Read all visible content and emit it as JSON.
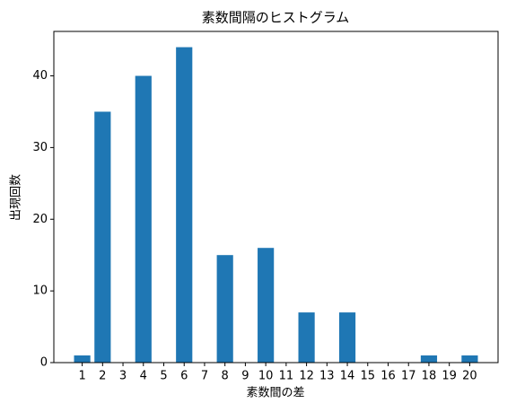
{
  "chart_data": {
    "type": "bar",
    "title": "素数間隔のヒストグラム",
    "x_label": "素数間の差",
    "y_label": "出現回数",
    "x": [
      1,
      2,
      4,
      6,
      8,
      10,
      12,
      14,
      18,
      20
    ],
    "values": [
      1,
      35,
      40,
      44,
      15,
      16,
      7,
      7,
      1,
      1
    ],
    "color": "#1f77b4",
    "xlim": [
      -0.39,
      21.39
    ],
    "xticks": [
      1,
      2,
      3,
      4,
      5,
      6,
      7,
      8,
      9,
      10,
      11,
      12,
      13,
      14,
      15,
      16,
      17,
      18,
      19,
      20
    ],
    "ylim": [
      0,
      46.2
    ],
    "yticks": [
      0,
      10,
      20,
      30,
      40
    ]
  }
}
